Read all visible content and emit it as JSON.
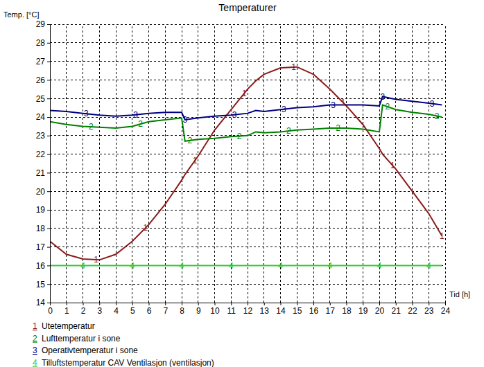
{
  "chart_data": {
    "type": "line",
    "title": "Temperaturer",
    "y_label": "Temp. [°C]",
    "x_label": "Tid [h]",
    "x": [
      0,
      1,
      2,
      3,
      4,
      5,
      6,
      7,
      8,
      8.2,
      9,
      10,
      11,
      12,
      12.5,
      13,
      14,
      15,
      16,
      17,
      18,
      19,
      20,
      20.2,
      21,
      22,
      23,
      23.8
    ],
    "series": [
      {
        "name": "Utetemperatur",
        "color": "#8b1a1a",
        "marker": "1",
        "values": [
          17.3,
          16.6,
          16.35,
          16.3,
          16.6,
          17.3,
          18.2,
          19.3,
          20.6,
          20.9,
          21.9,
          23.3,
          24.4,
          25.5,
          25.95,
          26.3,
          26.65,
          26.7,
          26.3,
          25.5,
          24.6,
          23.6,
          22.3,
          22.0,
          21.2,
          20.0,
          18.8,
          17.6
        ]
      },
      {
        "name": "Lufttemperatur i sone",
        "color": "#008000",
        "marker": "2",
        "values": [
          23.75,
          23.6,
          23.5,
          23.45,
          23.4,
          23.5,
          23.75,
          23.85,
          23.95,
          22.7,
          22.8,
          22.85,
          22.95,
          23.0,
          23.2,
          23.15,
          23.2,
          23.3,
          23.35,
          23.4,
          23.4,
          23.35,
          23.2,
          24.65,
          24.4,
          24.25,
          24.15,
          24.0
        ]
      },
      {
        "name": "Operativtemperatur i sone",
        "color": "#000080",
        "marker": "3",
        "values": [
          24.35,
          24.3,
          24.2,
          24.1,
          24.05,
          24.1,
          24.2,
          24.25,
          24.25,
          23.85,
          23.95,
          24.05,
          24.1,
          24.2,
          24.35,
          24.3,
          24.4,
          24.5,
          24.55,
          24.65,
          24.65,
          24.65,
          24.6,
          25.1,
          24.95,
          24.85,
          24.75,
          24.65
        ]
      },
      {
        "name": "Tilluftstemperatur CAV Ventilasjon (ventilasjon)",
        "color": "#33cc33",
        "marker": "4",
        "values": [
          16,
          16,
          16,
          16,
          16,
          16,
          16,
          16,
          16,
          16,
          16,
          16,
          16,
          16,
          16,
          16,
          16,
          16,
          16,
          16,
          16,
          16,
          16,
          16,
          16,
          16,
          16,
          16
        ]
      }
    ],
    "xlim": [
      0,
      24
    ],
    "xticks": [
      0,
      1,
      2,
      3,
      4,
      5,
      6,
      7,
      8,
      9,
      10,
      11,
      12,
      13,
      14,
      15,
      16,
      17,
      18,
      19,
      20,
      21,
      22,
      23,
      24
    ],
    "ylim": [
      14,
      29
    ],
    "yticks": [
      14,
      15,
      16,
      17,
      18,
      19,
      20,
      21,
      22,
      23,
      24,
      25,
      26,
      27,
      28,
      29
    ],
    "grid": true,
    "legend": "bottom"
  }
}
